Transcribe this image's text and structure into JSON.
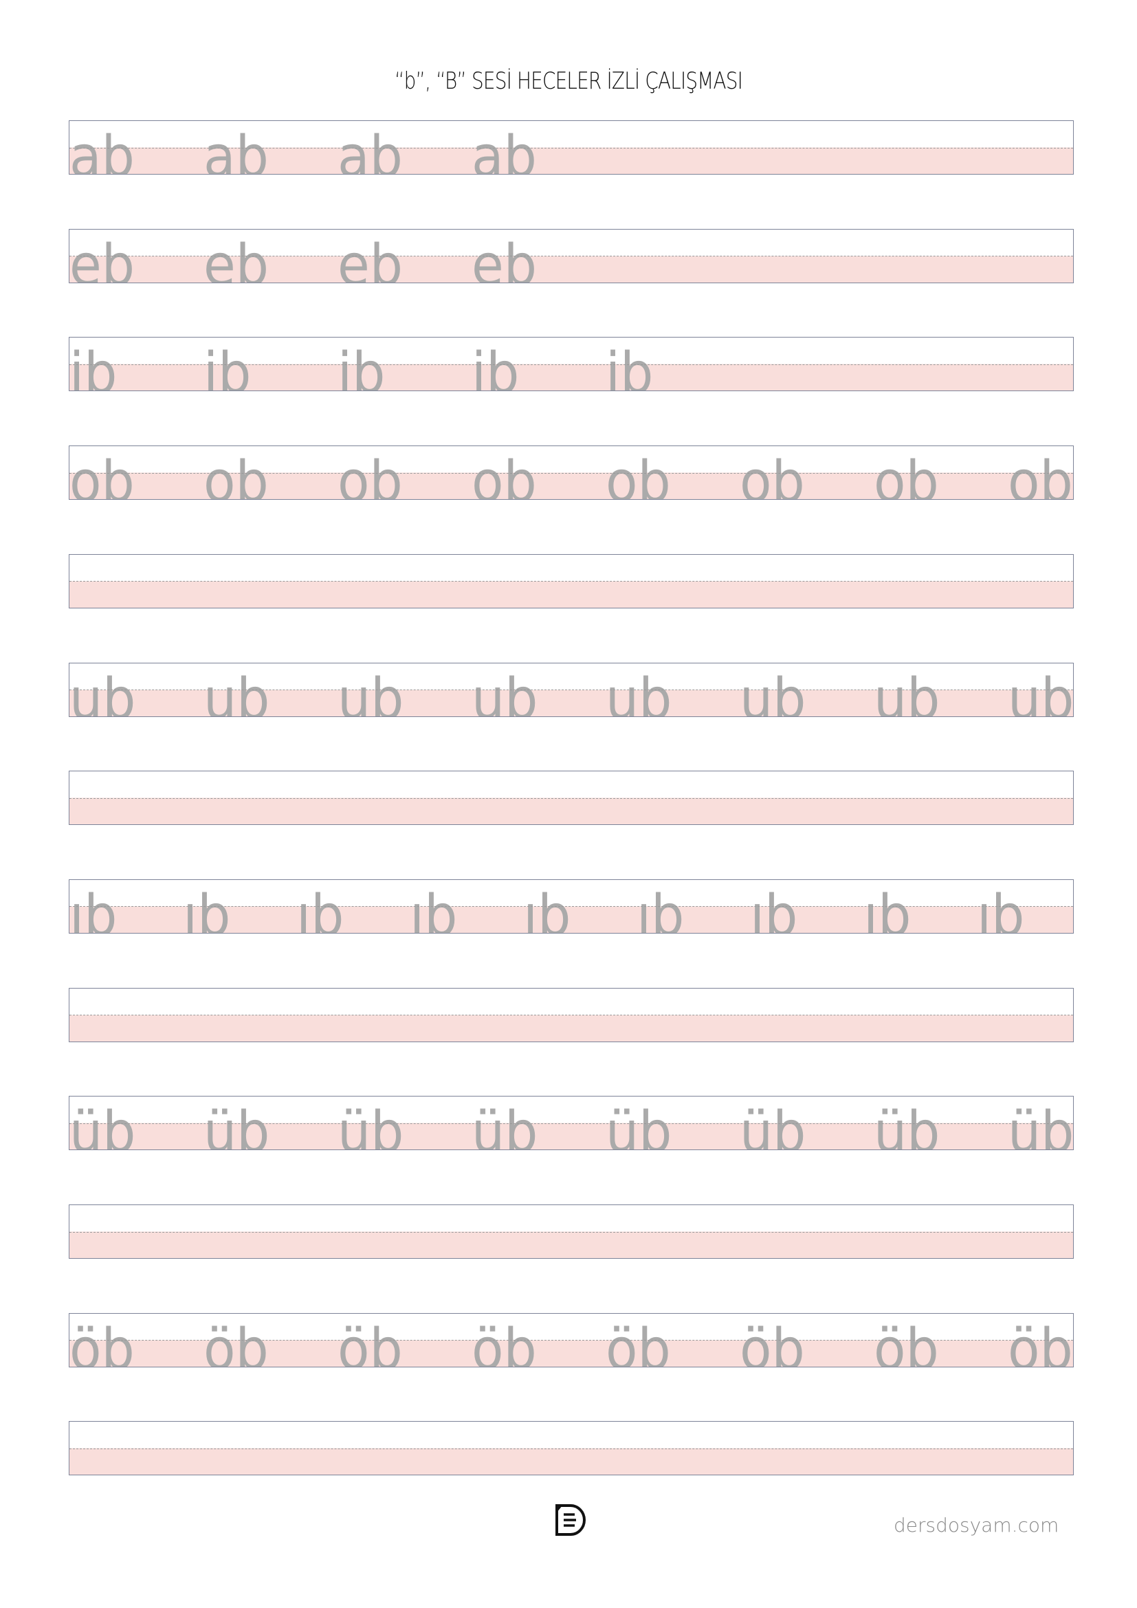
{
  "title": "“b”, “B” SESİ HECELER İZLİ ÇALIŞMASI",
  "rows": [
    {
      "syllable": "ab",
      "count": 4
    },
    {
      "syllable": "eb",
      "count": 4
    },
    {
      "syllable": "ib",
      "count": 5
    },
    {
      "syllable": "ob",
      "count": 8
    },
    {
      "syllable": "",
      "count": 0
    },
    {
      "syllable": "ub",
      "count": 8
    },
    {
      "syllable": "",
      "count": 0
    },
    {
      "syllable": "ıb",
      "count": 9
    },
    {
      "syllable": "",
      "count": 0
    },
    {
      "syllable": "üb",
      "count": 8
    },
    {
      "syllable": "",
      "count": 0
    },
    {
      "syllable": "öb",
      "count": 8
    },
    {
      "syllable": "",
      "count": 0
    }
  ],
  "footer": {
    "logo_icon": "document-d-logo-icon",
    "site": "dersdosyam.com"
  },
  "colors": {
    "lower_band": "#f9dedb",
    "trace_letters": "#aaaaaa",
    "border": "#7d8398"
  }
}
